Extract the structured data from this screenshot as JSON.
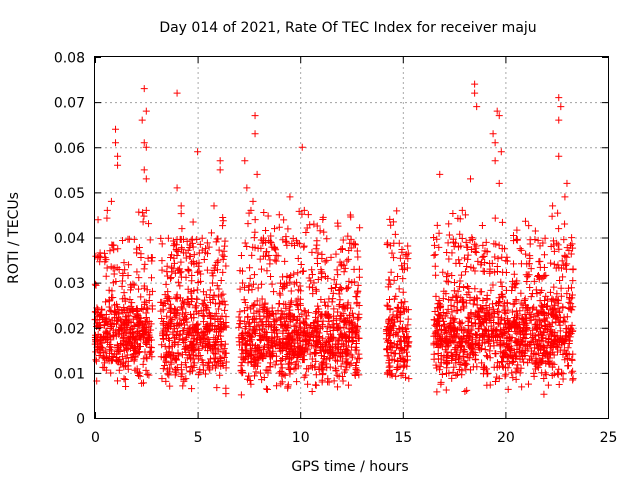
{
  "chart_data": {
    "type": "scatter",
    "title": "Day 014 of 2021, Rate Of TEC Index for receiver maju",
    "xlabel": "GPS time / hours",
    "ylabel": "ROTI / TECUs",
    "xlim": [
      0,
      25
    ],
    "ylim": [
      0,
      0.08
    ],
    "xticks": [
      0,
      5,
      10,
      15,
      20,
      25
    ],
    "xtick_labels": [
      "0",
      "5",
      "10",
      "15",
      "20",
      "25"
    ],
    "yticks": [
      0,
      0.01,
      0.02,
      0.03,
      0.04,
      0.05,
      0.06,
      0.07,
      0.08
    ],
    "ytick_labels": [
      "0",
      "0.01",
      "0.02",
      "0.03",
      "0.04",
      "0.05",
      "0.06",
      "0.07",
      "0.08"
    ],
    "grid": true,
    "marker": "+",
    "color": "#ff0000",
    "clusters": [
      {
        "x_range": [
          0.0,
          2.0
        ],
        "y_core": [
          0.005,
          0.028
        ],
        "max": 0.064
      },
      {
        "x_range": [
          2.0,
          2.8
        ],
        "y_core": [
          0.005,
          0.03
        ],
        "max": 0.073
      },
      {
        "x_range": [
          3.2,
          6.4
        ],
        "y_core": [
          0.003,
          0.03
        ],
        "max": 0.072
      },
      {
        "x_range": [
          7.0,
          12.9
        ],
        "y_core": [
          0.003,
          0.028
        ],
        "max": 0.067
      },
      {
        "x_range": [
          14.2,
          15.3
        ],
        "y_core": [
          0.004,
          0.029
        ],
        "max": 0.041
      },
      {
        "x_range": [
          16.5,
          23.3
        ],
        "y_core": [
          0.003,
          0.03
        ],
        "max": 0.074
      }
    ],
    "peaks": [
      {
        "x": 1.0,
        "y": 0.064
      },
      {
        "x": 1.0,
        "y": 0.061
      },
      {
        "x": 1.1,
        "y": 0.058
      },
      {
        "x": 1.1,
        "y": 0.056
      },
      {
        "x": 0.8,
        "y": 0.048
      },
      {
        "x": 0.6,
        "y": 0.046
      },
      {
        "x": 2.4,
        "y": 0.073
      },
      {
        "x": 2.5,
        "y": 0.068
      },
      {
        "x": 2.3,
        "y": 0.066
      },
      {
        "x": 2.4,
        "y": 0.061
      },
      {
        "x": 2.5,
        "y": 0.06
      },
      {
        "x": 2.4,
        "y": 0.055
      },
      {
        "x": 2.5,
        "y": 0.053
      },
      {
        "x": 2.5,
        "y": 0.046
      },
      {
        "x": 4.0,
        "y": 0.072
      },
      {
        "x": 4.0,
        "y": 0.051
      },
      {
        "x": 4.2,
        "y": 0.047
      },
      {
        "x": 5.0,
        "y": 0.059
      },
      {
        "x": 5.8,
        "y": 0.047
      },
      {
        "x": 6.1,
        "y": 0.057
      },
      {
        "x": 6.1,
        "y": 0.055
      },
      {
        "x": 7.3,
        "y": 0.057
      },
      {
        "x": 7.4,
        "y": 0.051
      },
      {
        "x": 7.8,
        "y": 0.067
      },
      {
        "x": 7.8,
        "y": 0.063
      },
      {
        "x": 7.9,
        "y": 0.054
      },
      {
        "x": 7.7,
        "y": 0.048
      },
      {
        "x": 7.6,
        "y": 0.046
      },
      {
        "x": 9.5,
        "y": 0.049
      },
      {
        "x": 10.1,
        "y": 0.06
      },
      {
        "x": 10.2,
        "y": 0.046
      },
      {
        "x": 11.1,
        "y": 0.044
      },
      {
        "x": 16.8,
        "y": 0.054
      },
      {
        "x": 17.9,
        "y": 0.046
      },
      {
        "x": 18.3,
        "y": 0.053
      },
      {
        "x": 18.5,
        "y": 0.074
      },
      {
        "x": 18.5,
        "y": 0.072
      },
      {
        "x": 18.6,
        "y": 0.069
      },
      {
        "x": 19.4,
        "y": 0.063
      },
      {
        "x": 19.5,
        "y": 0.061
      },
      {
        "x": 19.6,
        "y": 0.068
      },
      {
        "x": 19.7,
        "y": 0.067
      },
      {
        "x": 19.5,
        "y": 0.057
      },
      {
        "x": 19.7,
        "y": 0.052
      },
      {
        "x": 19.8,
        "y": 0.059
      },
      {
        "x": 22.6,
        "y": 0.071
      },
      {
        "x": 22.7,
        "y": 0.069
      },
      {
        "x": 22.6,
        "y": 0.066
      },
      {
        "x": 22.6,
        "y": 0.058
      },
      {
        "x": 23.0,
        "y": 0.052
      },
      {
        "x": 22.9,
        "y": 0.049
      },
      {
        "x": 22.3,
        "y": 0.047
      }
    ]
  }
}
